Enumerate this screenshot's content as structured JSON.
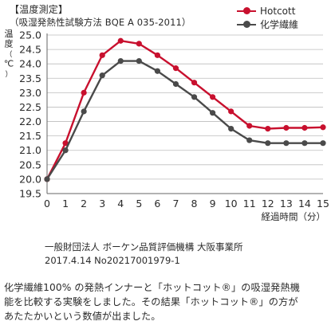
{
  "header": {
    "title": "【温度測定】",
    "subtitle": "（吸湿発熱性試験方法 BQE A 035-2011）"
  },
  "colors": {
    "hotcott": "#c8102e",
    "chemical": "#4a4a4a",
    "grid": "#bdbdbd",
    "text": "#2a2a2a"
  },
  "chart_data": {
    "type": "line",
    "x": [
      0,
      1,
      2,
      3,
      4,
      5,
      6,
      7,
      8,
      9,
      10,
      11,
      12,
      13,
      14,
      15
    ],
    "series": [
      {
        "name": "Hotcott",
        "color": "#c8102e",
        "values": [
          20.0,
          21.25,
          23.0,
          24.3,
          24.8,
          24.7,
          24.3,
          23.85,
          23.35,
          22.85,
          22.35,
          21.85,
          21.75,
          21.78,
          21.78,
          21.8
        ]
      },
      {
        "name": "化学繊維",
        "color": "#4a4a4a",
        "values": [
          20.0,
          21.0,
          22.35,
          23.6,
          24.1,
          24.1,
          23.75,
          23.3,
          22.85,
          22.3,
          21.75,
          21.35,
          21.25,
          21.25,
          21.25,
          21.25
        ]
      }
    ],
    "ylabel": "温度（℃）",
    "xlabel": "経過時間（分）",
    "ylim": [
      19.5,
      25.0
    ],
    "xlim": [
      0,
      15
    ],
    "yticks": [
      "19.5",
      "20.0",
      "20.5",
      "21.0",
      "21.5",
      "22.0",
      "22.5",
      "23.0",
      "23.5",
      "24.0",
      "24.5",
      "25.0"
    ],
    "xticks": [
      "0",
      "1",
      "2",
      "3",
      "4",
      "5",
      "6",
      "7",
      "8",
      "9",
      "10",
      "11",
      "12",
      "13",
      "14",
      "15"
    ],
    "grid": true,
    "legend_position": "top-right"
  },
  "source": {
    "line1": "一般財団法人 ボーケン品質評価機構 大阪事業所",
    "line2": "2017.4.14 No20217001979-1"
  },
  "footnote": {
    "line1": "化学繊維100% の発熱インナーと「ホットコット®」の吸湿発熱機",
    "line2": "能を比較する実験をしました。その結果「ホットコット®」の方が",
    "line3": "あたたかいという数値が出ました。"
  }
}
